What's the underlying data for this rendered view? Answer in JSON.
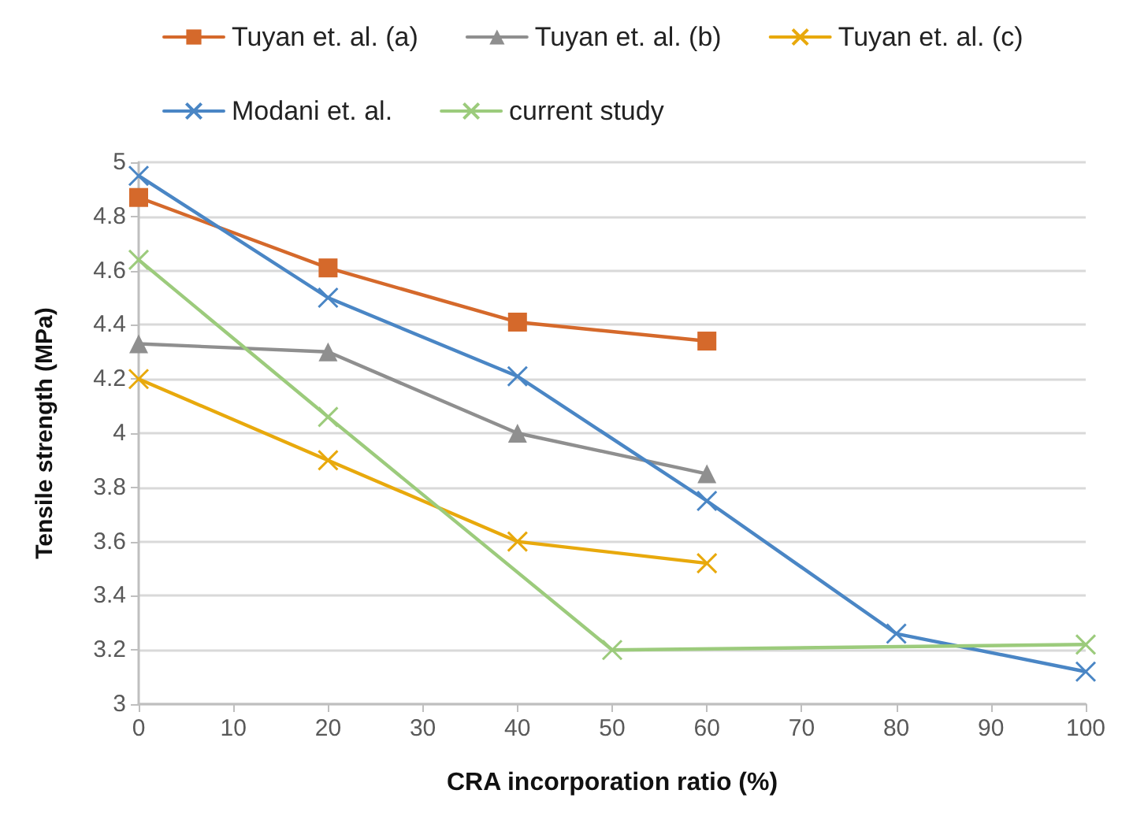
{
  "chart_data": {
    "type": "line",
    "xlabel": "CRA incorporation ratio (%)",
    "ylabel": "Tensile strength (MPa)",
    "xlim": [
      0,
      100
    ],
    "xticks": [
      0,
      10,
      20,
      30,
      40,
      50,
      60,
      70,
      80,
      90,
      100
    ],
    "ylim": [
      3,
      5
    ],
    "yticks": [
      3,
      3.2,
      3.4,
      3.6,
      3.8,
      4,
      4.2,
      4.4,
      4.6,
      4.8,
      5
    ],
    "grid": "y",
    "legend": "top",
    "line_style": "solid",
    "series": [
      {
        "name": "Tuyan et. al. (a)",
        "color": "#d5692b",
        "marker": "square",
        "x": [
          0,
          20,
          40,
          60
        ],
        "values": [
          4.87,
          4.61,
          4.41,
          4.34
        ]
      },
      {
        "name": "Tuyan et. al. (b)",
        "color": "#8f8f8f",
        "marker": "triangle",
        "x": [
          0,
          20,
          40,
          60
        ],
        "values": [
          4.33,
          4.3,
          4.0,
          3.85
        ]
      },
      {
        "name": "Tuyan et. al. (c)",
        "color": "#e8a90c",
        "marker": "cross",
        "x": [
          0,
          20,
          40,
          60
        ],
        "values": [
          4.2,
          3.9,
          3.6,
          3.52
        ]
      },
      {
        "name": "Modani et. al.",
        "color": "#4a86c5",
        "marker": "cross",
        "x": [
          0,
          20,
          40,
          60,
          80,
          100
        ],
        "values": [
          4.95,
          4.5,
          4.21,
          3.75,
          3.26,
          3.12
        ]
      },
      {
        "name": "current study",
        "color": "#9ccb7c",
        "marker": "cross",
        "x": [
          0,
          20,
          50,
          100
        ],
        "values": [
          4.64,
          4.06,
          3.2,
          3.22
        ]
      }
    ]
  }
}
